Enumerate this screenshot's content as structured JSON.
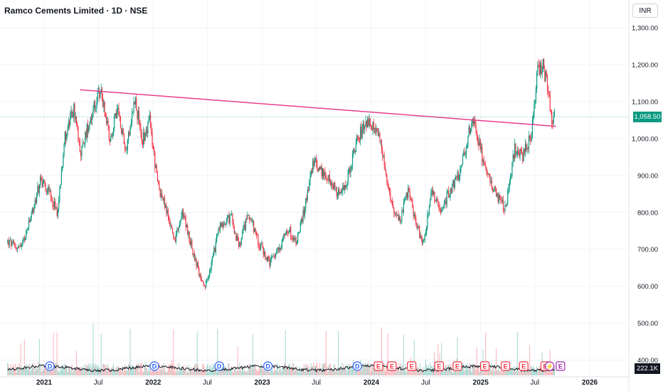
{
  "header": {
    "title": "Ramco Cements Limited · 1D · NSE",
    "currency": "INR"
  },
  "chart_data": {
    "type": "candlestick",
    "symbol": "Ramco Cements Limited",
    "interval": "1D",
    "exchange": "NSE",
    "currency": "INR",
    "last_price": 1058.5,
    "last_price_label": "1,058.50",
    "y_ticks": [
      "1,300.00",
      "1,200.00",
      "1,100.00",
      "1,000.00",
      "900.00",
      "800.00",
      "700.00",
      "600.00",
      "500.00",
      "400.00"
    ],
    "y_tick_values": [
      1300,
      1200,
      1100,
      1000,
      900,
      800,
      700,
      600,
      500,
      400
    ],
    "ylim": [
      355,
      1375
    ],
    "x_labels": [
      {
        "label": "2021",
        "bold": true,
        "date": "2021-01-01"
      },
      {
        "label": "Jul",
        "bold": false,
        "date": "2021-07-01"
      },
      {
        "label": "2022",
        "bold": true,
        "date": "2022-01-01"
      },
      {
        "label": "Jul",
        "bold": false,
        "date": "2022-07-01"
      },
      {
        "label": "2023",
        "bold": true,
        "date": "2023-01-01"
      },
      {
        "label": "Jul",
        "bold": false,
        "date": "2023-07-01"
      },
      {
        "label": "2024",
        "bold": true,
        "date": "2024-01-01"
      },
      {
        "label": "Jul",
        "bold": false,
        "date": "2024-07-01"
      },
      {
        "label": "2025",
        "bold": true,
        "date": "2025-01-01"
      },
      {
        "label": "Jul",
        "bold": false,
        "date": "2025-07-01"
      },
      {
        "label": "2026",
        "bold": true,
        "date": "2026-01-01"
      }
    ],
    "price_path": [
      [
        "2020-09-01",
        720
      ],
      [
        "2020-10-15",
        700
      ],
      [
        "2020-11-20",
        790
      ],
      [
        "2020-12-20",
        890
      ],
      [
        "2021-01-15",
        860
      ],
      [
        "2021-02-15",
        800
      ],
      [
        "2021-03-10",
        1000
      ],
      [
        "2021-04-10",
        1080
      ],
      [
        "2021-05-05",
        960
      ],
      [
        "2021-06-01",
        1050
      ],
      [
        "2021-07-10",
        1130
      ],
      [
        "2021-08-10",
        1000
      ],
      [
        "2021-09-05",
        1080
      ],
      [
        "2021-10-01",
        970
      ],
      [
        "2021-11-01",
        1110
      ],
      [
        "2021-11-25",
        990
      ],
      [
        "2021-12-20",
        1050
      ],
      [
        "2022-01-15",
        880
      ],
      [
        "2022-02-20",
        790
      ],
      [
        "2022-03-15",
        720
      ],
      [
        "2022-04-10",
        800
      ],
      [
        "2022-05-15",
        690
      ],
      [
        "2022-06-20",
        590
      ],
      [
        "2022-07-10",
        640
      ],
      [
        "2022-08-10",
        760
      ],
      [
        "2022-09-20",
        790
      ],
      [
        "2022-10-15",
        700
      ],
      [
        "2022-11-15",
        800
      ],
      [
        "2022-12-20",
        720
      ],
      [
        "2023-01-25",
        660
      ],
      [
        "2023-02-25",
        700
      ],
      [
        "2023-03-25",
        760
      ],
      [
        "2023-04-25",
        720
      ],
      [
        "2023-05-20",
        800
      ],
      [
        "2023-06-20",
        940
      ],
      [
        "2023-07-20",
        910
      ],
      [
        "2023-08-20",
        880
      ],
      [
        "2023-09-20",
        840
      ],
      [
        "2023-10-15",
        900
      ],
      [
        "2023-11-15",
        1000
      ],
      [
        "2023-12-20",
        1050
      ],
      [
        "2024-01-15",
        1020
      ],
      [
        "2024-02-05",
        980
      ],
      [
        "2024-03-05",
        830
      ],
      [
        "2024-04-05",
        780
      ],
      [
        "2024-05-05",
        860
      ],
      [
        "2024-06-01",
        760
      ],
      [
        "2024-06-25",
        720
      ],
      [
        "2024-07-20",
        860
      ],
      [
        "2024-08-20",
        800
      ],
      [
        "2024-09-20",
        860
      ],
      [
        "2024-10-25",
        910
      ],
      [
        "2024-12-05",
        1060
      ],
      [
        "2025-01-10",
        940
      ],
      [
        "2025-02-05",
        880
      ],
      [
        "2025-02-25",
        840
      ],
      [
        "2025-03-25",
        810
      ],
      [
        "2025-04-25",
        970
      ],
      [
        "2025-05-20",
        950
      ],
      [
        "2025-06-20",
        1010
      ],
      [
        "2025-07-10",
        1180
      ],
      [
        "2025-07-28",
        1200
      ],
      [
        "2025-08-15",
        1130
      ],
      [
        "2025-08-28",
        1040
      ],
      [
        "2025-09-05",
        1058.5
      ]
    ],
    "trendline": {
      "start": [
        "2021-05-01",
        1132
      ],
      "end": [
        "2025-09-10",
        1033
      ],
      "color": "#e83e8c"
    },
    "volume_indicator": {
      "label": "222.1K"
    },
    "event_markers": [
      {
        "type": "D",
        "date": "2021-01-20"
      },
      {
        "type": "D",
        "date": "2022-01-05"
      },
      {
        "type": "D",
        "date": "2022-08-10"
      },
      {
        "type": "D",
        "date": "2023-01-20"
      },
      {
        "type": "D",
        "date": "2023-11-15"
      },
      {
        "type": "E",
        "date": "2024-01-25"
      },
      {
        "type": "E",
        "date": "2024-03-10"
      },
      {
        "type": "E",
        "date": "2024-05-15"
      },
      {
        "type": "E",
        "date": "2024-08-15"
      },
      {
        "type": "E",
        "date": "2024-10-15"
      },
      {
        "type": "E",
        "date": "2025-01-15"
      },
      {
        "type": "E",
        "date": "2025-03-25"
      },
      {
        "type": "E",
        "date": "2025-05-25"
      },
      {
        "type": "E",
        "date": "2025-08-05"
      },
      {
        "type": "S",
        "date": "2025-08-20"
      },
      {
        "type": "E",
        "date": "2025-09-25",
        "future": true
      }
    ]
  },
  "colors": {
    "up": "#089981",
    "down": "#f23645",
    "trendline": "#e83e8c",
    "last_price": "#089981",
    "dividend": "#2962ff",
    "earnings_up": "#089981",
    "earnings_down": "#f23645",
    "split": "#9c27b0",
    "grid": "#f0f3fa"
  }
}
